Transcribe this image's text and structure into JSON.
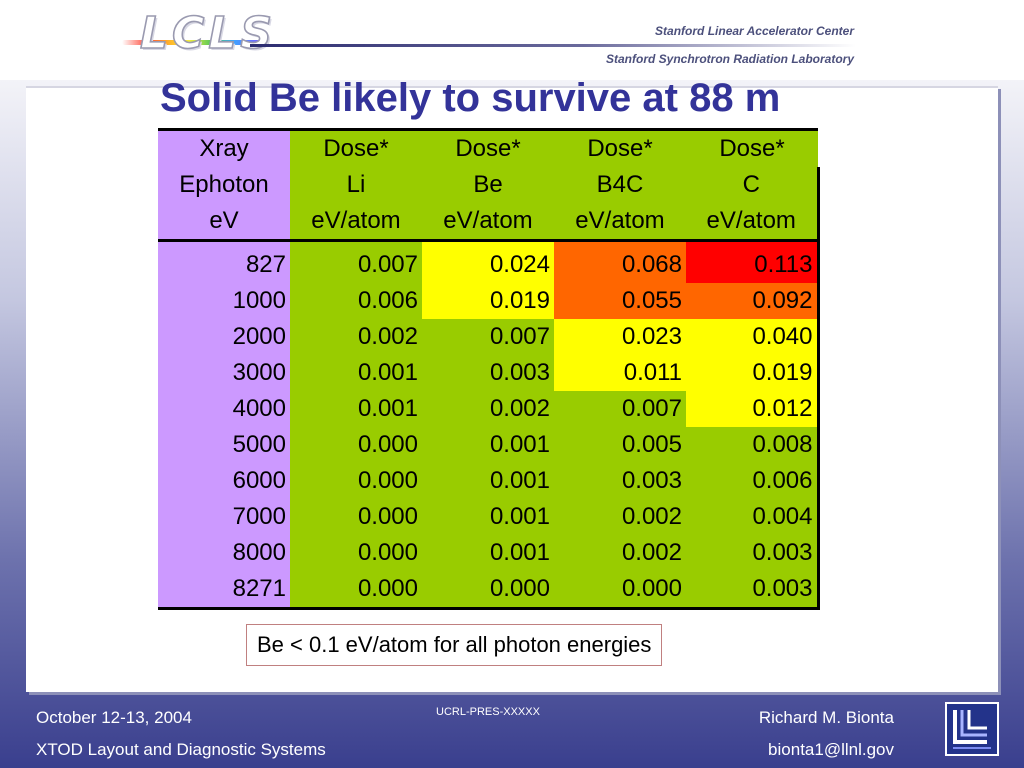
{
  "header": {
    "logo_text": "LCLS",
    "org_line1": "Stanford Linear Accelerator Center",
    "org_line2": "Stanford Synchrotron Radiation Laboratory"
  },
  "slide": {
    "title": "Solid Be likely to survive at 88 m",
    "table": {
      "header_rows": [
        [
          "Xray",
          "Dose*",
          "Dose*",
          "Dose*",
          "Dose*"
        ],
        [
          "Ephoton",
          "Li",
          "Be",
          "B4C",
          "C"
        ],
        [
          "eV",
          "eV/atom",
          "eV/atom",
          "eV/atom",
          "eV/atom"
        ]
      ],
      "rows": [
        {
          "energy": "827",
          "li": "0.007",
          "be": "0.024",
          "b4c": "0.068",
          "c": "0.113"
        },
        {
          "energy": "1000",
          "li": "0.006",
          "be": "0.019",
          "b4c": "0.055",
          "c": "0.092"
        },
        {
          "energy": "2000",
          "li": "0.002",
          "be": "0.007",
          "b4c": "0.023",
          "c": "0.040"
        },
        {
          "energy": "3000",
          "li": "0.001",
          "be": "0.003",
          "b4c": "0.011",
          "c": "0.019"
        },
        {
          "energy": "4000",
          "li": "0.001",
          "be": "0.002",
          "b4c": "0.007",
          "c": "0.012"
        },
        {
          "energy": "5000",
          "li": "0.000",
          "be": "0.001",
          "b4c": "0.005",
          "c": "0.008"
        },
        {
          "energy": "6000",
          "li": "0.000",
          "be": "0.001",
          "b4c": "0.003",
          "c": "0.006"
        },
        {
          "energy": "7000",
          "li": "0.000",
          "be": "0.001",
          "b4c": "0.002",
          "c": "0.004"
        },
        {
          "energy": "8000",
          "li": "0.000",
          "be": "0.001",
          "b4c": "0.002",
          "c": "0.003"
        },
        {
          "energy": "8271",
          "li": "0.000",
          "be": "0.000",
          "b4c": "0.000",
          "c": "0.003"
        }
      ],
      "colors": {
        "energy_column": "#cc99ff",
        "safe": "#99cc00",
        "caution": "#ffff00",
        "warning": "#ff6600",
        "danger": "#ff0000"
      }
    },
    "note": "Be < 0.1 eV/atom for all photon energies"
  },
  "footer": {
    "date": "October 12-13, 2004",
    "system": "XTOD Layout and Diagnostic Systems",
    "report_id": "UCRL-PRES-XXXXX",
    "author": "Richard M. Bionta",
    "email": "bionta1@llnl.gov"
  }
}
